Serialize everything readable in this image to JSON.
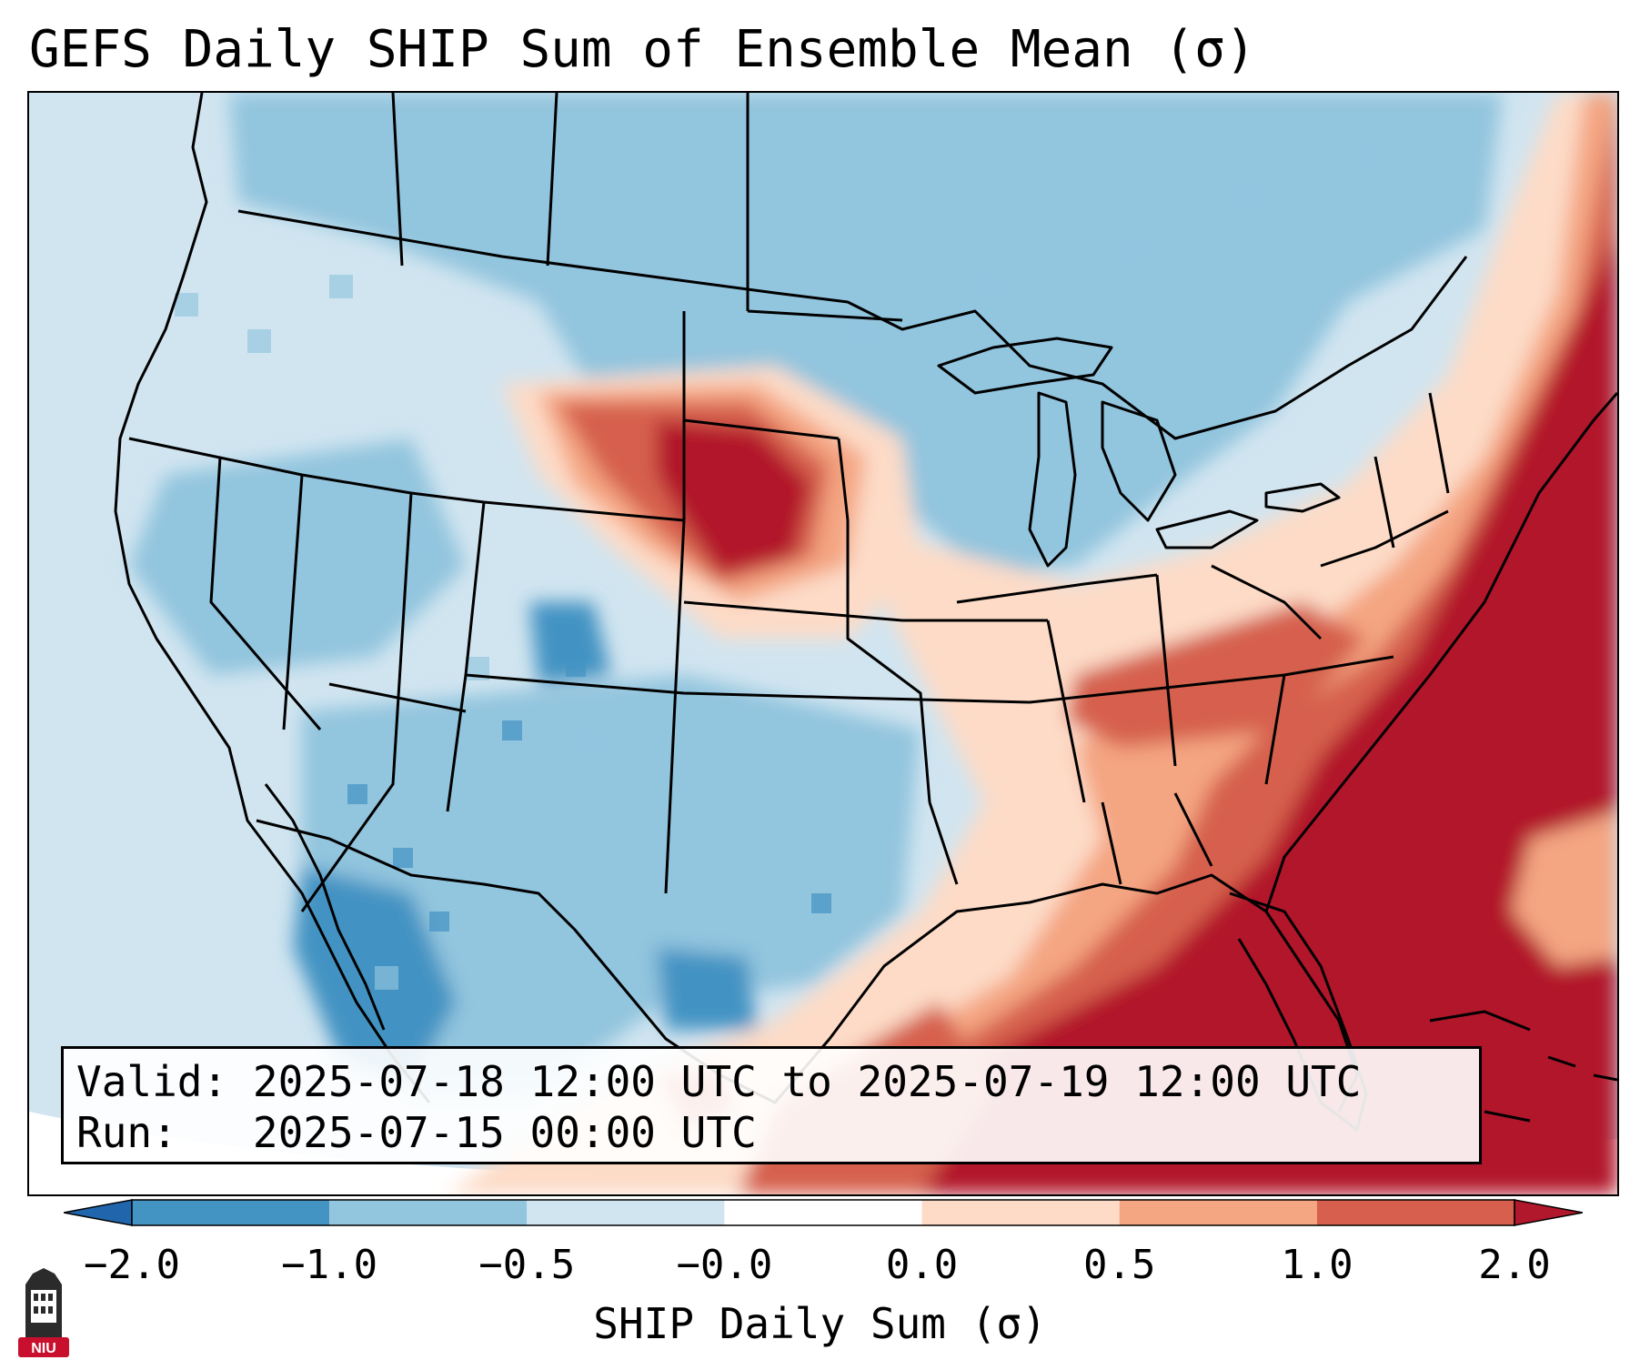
{
  "title": "GEFS Daily SHIP Sum of Ensemble Mean (σ)",
  "info": {
    "valid_label": "Valid:",
    "valid_value": "2025-07-18 12:00 UTC to 2025-07-19 12:00 UTC",
    "run_label": "Run:",
    "run_value": "2025-07-15 00:00 UTC"
  },
  "colorbar": {
    "label": "SHIP Daily Sum (σ)",
    "ticks": [
      "−2.0",
      "−1.0",
      "−0.5",
      "−0.0",
      "0.0",
      "0.5",
      "1.0",
      "2.0"
    ],
    "bins": [
      {
        "range": "< -2.0",
        "color": "#2166ac"
      },
      {
        "range": "-2.0 to -1.0",
        "color": "#4393c3"
      },
      {
        "range": "-1.0 to -0.5",
        "color": "#92c5de"
      },
      {
        "range": "-0.5 to -0.0",
        "color": "#d1e5f0"
      },
      {
        "range": "-0.0 to 0.0",
        "color": "#ffffff"
      },
      {
        "range": "0.0 to 0.5",
        "color": "#fddbc7"
      },
      {
        "range": "0.5 to 1.0",
        "color": "#f4a582"
      },
      {
        "range": "1.0 to 2.0",
        "color": "#d6604d"
      },
      {
        "range": "> 2.0",
        "color": "#b2182b"
      }
    ]
  },
  "logo": {
    "text": "NIU",
    "color": "#c8102e"
  }
}
